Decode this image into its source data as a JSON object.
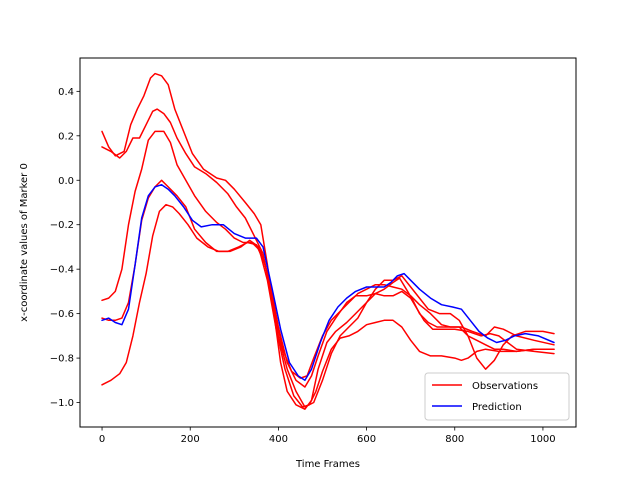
{
  "chart_data": {
    "type": "line",
    "title": "",
    "xlabel": "Time Frames",
    "ylabel": "x-coordinate values of Marker 0",
    "xlim": [
      -50,
      1075
    ],
    "ylim": [
      -1.11,
      0.55
    ],
    "xticks": [
      0,
      200,
      400,
      600,
      800,
      1000
    ],
    "yticks": [
      -1.0,
      -0.8,
      -0.6,
      -0.4,
      -0.2,
      0.0,
      0.2,
      0.4
    ],
    "ytick_labels": [
      "−1.0",
      "−0.8",
      "−0.6",
      "−0.4",
      "−0.2",
      "0.0",
      "0.2",
      "0.4"
    ],
    "grid": false,
    "legend_position": "lower-right",
    "legend": [
      {
        "label": "Observations",
        "color": "#ff0000"
      },
      {
        "label": "Prediction",
        "color": "#0000ff"
      }
    ],
    "series": [
      {
        "group": "Observations",
        "color": "#ff0000",
        "points": [
          [
            0,
            0.22
          ],
          [
            15,
            0.15
          ],
          [
            30,
            0.11
          ],
          [
            50,
            0.13
          ],
          [
            65,
            0.25
          ],
          [
            80,
            0.32
          ],
          [
            95,
            0.38
          ],
          [
            110,
            0.46
          ],
          [
            120,
            0.48
          ],
          [
            135,
            0.47
          ],
          [
            150,
            0.43
          ],
          [
            165,
            0.32
          ],
          [
            185,
            0.22
          ],
          [
            205,
            0.12
          ],
          [
            230,
            0.05
          ],
          [
            260,
            0.01
          ],
          [
            280,
            0.0
          ],
          [
            300,
            -0.04
          ],
          [
            325,
            -0.1
          ],
          [
            345,
            -0.15
          ],
          [
            360,
            -0.2
          ],
          [
            375,
            -0.38
          ],
          [
            390,
            -0.6
          ],
          [
            405,
            -0.82
          ],
          [
            420,
            -0.95
          ],
          [
            440,
            -1.01
          ],
          [
            460,
            -1.03
          ],
          [
            475,
            -0.99
          ],
          [
            490,
            -0.85
          ],
          [
            510,
            -0.73
          ],
          [
            530,
            -0.68
          ],
          [
            555,
            -0.64
          ],
          [
            575,
            -0.6
          ],
          [
            600,
            -0.55
          ],
          [
            620,
            -0.49
          ],
          [
            640,
            -0.45
          ],
          [
            660,
            -0.45
          ],
          [
            680,
            -0.43
          ],
          [
            700,
            -0.48
          ],
          [
            720,
            -0.53
          ],
          [
            740,
            -0.58
          ],
          [
            765,
            -0.6
          ],
          [
            790,
            -0.6
          ],
          [
            810,
            -0.63
          ],
          [
            830,
            -0.7
          ],
          [
            850,
            -0.8
          ],
          [
            870,
            -0.85
          ],
          [
            890,
            -0.81
          ],
          [
            910,
            -0.74
          ],
          [
            930,
            -0.7
          ],
          [
            960,
            -0.68
          ],
          [
            1000,
            -0.68
          ],
          [
            1025,
            -0.69
          ]
        ]
      },
      {
        "group": "Observations",
        "color": "#ff0000",
        "points": [
          [
            0,
            0.15
          ],
          [
            20,
            0.13
          ],
          [
            40,
            0.1
          ],
          [
            55,
            0.13
          ],
          [
            70,
            0.19
          ],
          [
            85,
            0.19
          ],
          [
            100,
            0.25
          ],
          [
            115,
            0.31
          ],
          [
            125,
            0.32
          ],
          [
            140,
            0.3
          ],
          [
            155,
            0.26
          ],
          [
            170,
            0.19
          ],
          [
            190,
            0.12
          ],
          [
            210,
            0.06
          ],
          [
            235,
            0.03
          ],
          [
            260,
            -0.01
          ],
          [
            285,
            -0.06
          ],
          [
            305,
            -0.12
          ],
          [
            325,
            -0.17
          ],
          [
            345,
            -0.25
          ],
          [
            365,
            -0.33
          ],
          [
            385,
            -0.52
          ],
          [
            400,
            -0.7
          ],
          [
            420,
            -0.85
          ],
          [
            440,
            -0.95
          ],
          [
            460,
            -1.02
          ],
          [
            480,
            -1.0
          ],
          [
            500,
            -0.9
          ],
          [
            520,
            -0.78
          ],
          [
            540,
            -0.7
          ],
          [
            560,
            -0.66
          ],
          [
            580,
            -0.62
          ],
          [
            600,
            -0.55
          ],
          [
            620,
            -0.51
          ],
          [
            640,
            -0.49
          ],
          [
            660,
            -0.46
          ],
          [
            675,
            -0.44
          ],
          [
            690,
            -0.49
          ],
          [
            705,
            -0.54
          ],
          [
            720,
            -0.6
          ],
          [
            740,
            -0.64
          ],
          [
            760,
            -0.66
          ],
          [
            790,
            -0.66
          ],
          [
            815,
            -0.66
          ],
          [
            840,
            -0.68
          ],
          [
            870,
            -0.7
          ],
          [
            890,
            -0.66
          ],
          [
            910,
            -0.67
          ],
          [
            940,
            -0.7
          ],
          [
            980,
            -0.72
          ],
          [
            1025,
            -0.74
          ]
        ]
      },
      {
        "group": "Observations",
        "color": "#ff0000",
        "points": [
          [
            0,
            -0.54
          ],
          [
            15,
            -0.53
          ],
          [
            30,
            -0.5
          ],
          [
            45,
            -0.4
          ],
          [
            60,
            -0.2
          ],
          [
            75,
            -0.05
          ],
          [
            90,
            0.05
          ],
          [
            105,
            0.18
          ],
          [
            120,
            0.22
          ],
          [
            140,
            0.22
          ],
          [
            155,
            0.17
          ],
          [
            170,
            0.07
          ],
          [
            190,
            0.0
          ],
          [
            210,
            -0.07
          ],
          [
            235,
            -0.14
          ],
          [
            260,
            -0.19
          ],
          [
            280,
            -0.22
          ],
          [
            300,
            -0.26
          ],
          [
            320,
            -0.28
          ],
          [
            340,
            -0.28
          ],
          [
            360,
            -0.32
          ],
          [
            380,
            -0.45
          ],
          [
            400,
            -0.66
          ],
          [
            420,
            -0.82
          ],
          [
            440,
            -0.9
          ],
          [
            460,
            -0.93
          ],
          [
            475,
            -0.88
          ],
          [
            490,
            -0.79
          ],
          [
            510,
            -0.68
          ],
          [
            530,
            -0.62
          ],
          [
            555,
            -0.55
          ],
          [
            575,
            -0.52
          ],
          [
            600,
            -0.52
          ],
          [
            620,
            -0.51
          ],
          [
            640,
            -0.52
          ],
          [
            660,
            -0.52
          ],
          [
            680,
            -0.5
          ],
          [
            700,
            -0.53
          ],
          [
            715,
            -0.58
          ],
          [
            730,
            -0.63
          ],
          [
            750,
            -0.67
          ],
          [
            775,
            -0.67
          ],
          [
            800,
            -0.67
          ],
          [
            830,
            -0.68
          ],
          [
            860,
            -0.7
          ],
          [
            880,
            -0.69
          ],
          [
            900,
            -0.7
          ],
          [
            940,
            -0.76
          ],
          [
            980,
            -0.77
          ],
          [
            1025,
            -0.78
          ]
        ]
      },
      {
        "group": "Observations",
        "color": "#ff0000",
        "points": [
          [
            0,
            -0.62
          ],
          [
            15,
            -0.63
          ],
          [
            30,
            -0.63
          ],
          [
            45,
            -0.62
          ],
          [
            60,
            -0.55
          ],
          [
            75,
            -0.38
          ],
          [
            90,
            -0.18
          ],
          [
            105,
            -0.08
          ],
          [
            120,
            -0.03
          ],
          [
            135,
            0.0
          ],
          [
            150,
            -0.03
          ],
          [
            170,
            -0.07
          ],
          [
            190,
            -0.12
          ],
          [
            210,
            -0.22
          ],
          [
            235,
            -0.28
          ],
          [
            260,
            -0.32
          ],
          [
            285,
            -0.32
          ],
          [
            310,
            -0.3
          ],
          [
            330,
            -0.28
          ],
          [
            350,
            -0.29
          ],
          [
            370,
            -0.38
          ],
          [
            390,
            -0.58
          ],
          [
            410,
            -0.76
          ],
          [
            430,
            -0.86
          ],
          [
            450,
            -0.89
          ],
          [
            465,
            -0.88
          ],
          [
            480,
            -0.8
          ],
          [
            500,
            -0.7
          ],
          [
            520,
            -0.63
          ],
          [
            540,
            -0.59
          ],
          [
            560,
            -0.55
          ],
          [
            580,
            -0.51
          ],
          [
            600,
            -0.49
          ],
          [
            620,
            -0.47
          ],
          [
            640,
            -0.47
          ],
          [
            660,
            -0.48
          ],
          [
            680,
            -0.49
          ],
          [
            700,
            -0.52
          ],
          [
            720,
            -0.56
          ],
          [
            745,
            -0.6
          ],
          [
            770,
            -0.65
          ],
          [
            790,
            -0.66
          ],
          [
            810,
            -0.66
          ],
          [
            830,
            -0.7
          ],
          [
            850,
            -0.72
          ],
          [
            870,
            -0.74
          ],
          [
            890,
            -0.76
          ],
          [
            910,
            -0.76
          ],
          [
            940,
            -0.77
          ],
          [
            980,
            -0.76
          ],
          [
            1025,
            -0.76
          ]
        ]
      },
      {
        "group": "Observations",
        "color": "#ff0000",
        "points": [
          [
            0,
            -0.92
          ],
          [
            20,
            -0.9
          ],
          [
            40,
            -0.87
          ],
          [
            55,
            -0.82
          ],
          [
            70,
            -0.7
          ],
          [
            85,
            -0.55
          ],
          [
            100,
            -0.42
          ],
          [
            115,
            -0.25
          ],
          [
            130,
            -0.14
          ],
          [
            145,
            -0.11
          ],
          [
            160,
            -0.12
          ],
          [
            175,
            -0.15
          ],
          [
            195,
            -0.2
          ],
          [
            215,
            -0.26
          ],
          [
            240,
            -0.3
          ],
          [
            265,
            -0.32
          ],
          [
            290,
            -0.32
          ],
          [
            315,
            -0.3
          ],
          [
            335,
            -0.27
          ],
          [
            355,
            -0.3
          ],
          [
            375,
            -0.45
          ],
          [
            395,
            -0.67
          ],
          [
            415,
            -0.85
          ],
          [
            435,
            -0.97
          ],
          [
            455,
            -1.02
          ],
          [
            470,
            -1.01
          ],
          [
            485,
            -0.95
          ],
          [
            500,
            -0.86
          ],
          [
            520,
            -0.76
          ],
          [
            540,
            -0.71
          ],
          [
            560,
            -0.7
          ],
          [
            580,
            -0.68
          ],
          [
            600,
            -0.65
          ],
          [
            620,
            -0.64
          ],
          [
            640,
            -0.63
          ],
          [
            660,
            -0.63
          ],
          [
            680,
            -0.66
          ],
          [
            700,
            -0.72
          ],
          [
            720,
            -0.77
          ],
          [
            745,
            -0.79
          ],
          [
            770,
            -0.79
          ],
          [
            800,
            -0.8
          ],
          [
            815,
            -0.81
          ],
          [
            830,
            -0.8
          ],
          [
            850,
            -0.77
          ],
          [
            870,
            -0.76
          ],
          [
            900,
            -0.77
          ],
          [
            940,
            -0.77
          ],
          [
            980,
            -0.76
          ],
          [
            1025,
            -0.76
          ]
        ]
      },
      {
        "group": "Prediction",
        "color": "#0000ff",
        "points": [
          [
            0,
            -0.63
          ],
          [
            15,
            -0.62
          ],
          [
            30,
            -0.64
          ],
          [
            45,
            -0.65
          ],
          [
            60,
            -0.58
          ],
          [
            75,
            -0.38
          ],
          [
            90,
            -0.17
          ],
          [
            105,
            -0.07
          ],
          [
            120,
            -0.03
          ],
          [
            135,
            -0.02
          ],
          [
            150,
            -0.04
          ],
          [
            165,
            -0.07
          ],
          [
            185,
            -0.12
          ],
          [
            205,
            -0.18
          ],
          [
            225,
            -0.21
          ],
          [
            250,
            -0.2
          ],
          [
            275,
            -0.2
          ],
          [
            300,
            -0.24
          ],
          [
            325,
            -0.26
          ],
          [
            350,
            -0.26
          ],
          [
            365,
            -0.3
          ],
          [
            385,
            -0.48
          ],
          [
            405,
            -0.67
          ],
          [
            425,
            -0.82
          ],
          [
            445,
            -0.88
          ],
          [
            460,
            -0.9
          ],
          [
            475,
            -0.85
          ],
          [
            495,
            -0.73
          ],
          [
            515,
            -0.63
          ],
          [
            535,
            -0.57
          ],
          [
            555,
            -0.53
          ],
          [
            575,
            -0.5
          ],
          [
            600,
            -0.48
          ],
          [
            620,
            -0.48
          ],
          [
            640,
            -0.48
          ],
          [
            655,
            -0.46
          ],
          [
            670,
            -0.43
          ],
          [
            685,
            -0.42
          ],
          [
            700,
            -0.45
          ],
          [
            720,
            -0.49
          ],
          [
            745,
            -0.53
          ],
          [
            770,
            -0.56
          ],
          [
            795,
            -0.57
          ],
          [
            815,
            -0.58
          ],
          [
            835,
            -0.63
          ],
          [
            855,
            -0.68
          ],
          [
            875,
            -0.71
          ],
          [
            895,
            -0.73
          ],
          [
            915,
            -0.72
          ],
          [
            935,
            -0.7
          ],
          [
            960,
            -0.69
          ],
          [
            990,
            -0.7
          ],
          [
            1025,
            -0.73
          ]
        ]
      }
    ]
  }
}
